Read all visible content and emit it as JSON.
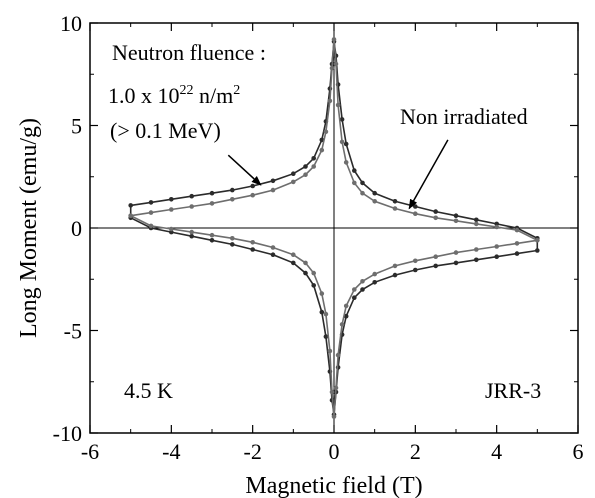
{
  "chart_data": {
    "type": "line",
    "title": "",
    "xlabel": "Magnetic field (T)",
    "ylabel": "Long Moment (emu/g)",
    "xlim": [
      -6,
      6
    ],
    "ylim": [
      -10,
      10
    ],
    "xticks": [
      -6,
      -4,
      -2,
      0,
      2,
      4,
      6
    ],
    "yticks": [
      -10,
      -5,
      0,
      5,
      10
    ],
    "xtick_labels": [
      "-6",
      "-4",
      "-2",
      "0",
      "2",
      "4",
      "6"
    ],
    "ytick_labels": [
      "-10",
      "-5",
      "0",
      "5",
      "10"
    ],
    "grid": false,
    "zero_lines": true,
    "colors": {
      "irradiated": "#2b2b2b",
      "non_irradiated": "#6e6e6e"
    },
    "series": [
      {
        "name": "",
        "label_ref": "irradiated",
        "color": "#2b2b2b",
        "upper": {
          "x": [
            -5.0,
            -4.5,
            -4.0,
            -3.5,
            -3.0,
            -2.5,
            -2.0,
            -1.5,
            -1.0,
            -0.7,
            -0.5,
            -0.3,
            -0.2,
            -0.1,
            -0.05,
            0.0,
            0.05,
            0.1,
            0.2,
            0.3,
            0.5,
            0.7,
            1.0,
            1.5,
            2.0,
            2.5,
            3.0,
            3.5,
            4.0,
            4.5,
            5.0
          ],
          "y": [
            1.1,
            1.25,
            1.4,
            1.55,
            1.7,
            1.85,
            2.05,
            2.3,
            2.65,
            3.0,
            3.4,
            4.3,
            5.2,
            6.8,
            8.0,
            9.1,
            8.4,
            7.0,
            5.3,
            4.1,
            2.8,
            2.2,
            1.7,
            1.3,
            1.05,
            0.8,
            0.6,
            0.4,
            0.2,
            0.0,
            -0.5
          ]
        },
        "lower": {
          "x": [
            -5.0,
            -4.5,
            -4.0,
            -3.5,
            -3.0,
            -2.5,
            -2.0,
            -1.5,
            -1.0,
            -0.7,
            -0.5,
            -0.3,
            -0.2,
            -0.1,
            -0.05,
            0.0,
            0.05,
            0.1,
            0.2,
            0.3,
            0.5,
            0.7,
            1.0,
            1.5,
            2.0,
            2.5,
            3.0,
            3.5,
            4.0,
            4.5,
            5.0
          ],
          "y": [
            0.5,
            0.0,
            -0.2,
            -0.4,
            -0.6,
            -0.8,
            -1.05,
            -1.3,
            -1.7,
            -2.2,
            -2.8,
            -4.1,
            -5.3,
            -7.0,
            -8.4,
            -9.1,
            -8.0,
            -6.8,
            -5.2,
            -4.3,
            -3.4,
            -3.0,
            -2.65,
            -2.3,
            -2.05,
            -1.85,
            -1.7,
            -1.55,
            -1.4,
            -1.25,
            -1.1
          ]
        }
      },
      {
        "name": "",
        "label_ref": "non_irradiated",
        "color": "#6e6e6e",
        "upper": {
          "x": [
            -5.0,
            -4.5,
            -4.0,
            -3.5,
            -3.0,
            -2.5,
            -2.0,
            -1.5,
            -1.0,
            -0.7,
            -0.5,
            -0.3,
            -0.2,
            -0.1,
            -0.05,
            0.0,
            0.05,
            0.1,
            0.2,
            0.3,
            0.5,
            0.7,
            1.0,
            1.5,
            2.0,
            2.5,
            3.0,
            3.5,
            4.0,
            4.5,
            5.0
          ],
          "y": [
            0.6,
            0.75,
            0.9,
            1.05,
            1.2,
            1.4,
            1.6,
            1.85,
            2.25,
            2.6,
            3.0,
            3.8,
            4.7,
            6.2,
            7.8,
            9.2,
            8.0,
            6.0,
            4.2,
            3.2,
            2.2,
            1.7,
            1.3,
            0.95,
            0.7,
            0.5,
            0.35,
            0.2,
            0.05,
            -0.1,
            -0.6
          ]
        },
        "lower": {
          "x": [
            -5.0,
            -4.5,
            -4.0,
            -3.5,
            -3.0,
            -2.5,
            -2.0,
            -1.5,
            -1.0,
            -0.7,
            -0.5,
            -0.3,
            -0.2,
            -0.1,
            -0.05,
            0.0,
            0.05,
            0.1,
            0.2,
            0.3,
            0.5,
            0.7,
            1.0,
            1.5,
            2.0,
            2.5,
            3.0,
            3.5,
            4.0,
            4.5,
            5.0
          ],
          "y": [
            0.6,
            0.1,
            -0.05,
            -0.2,
            -0.35,
            -0.5,
            -0.7,
            -0.95,
            -1.3,
            -1.7,
            -2.2,
            -3.2,
            -4.2,
            -6.0,
            -8.0,
            -9.2,
            -7.8,
            -6.2,
            -4.7,
            -3.8,
            -3.0,
            -2.6,
            -2.25,
            -1.85,
            -1.6,
            -1.4,
            -1.2,
            -1.05,
            -0.9,
            -0.75,
            -0.6
          ]
        }
      }
    ],
    "annotations": {
      "fluence_heading": "Neutron fluence :",
      "fluence_base": "1.0 x 10",
      "fluence_exp": "22",
      "fluence_unit_base": " n/m",
      "fluence_unit_exp": "2",
      "energy": "(> 0.1 MeV)",
      "non_irradiated": "Non irradiated",
      "temperature": "4.5 K",
      "reactor": "JRR-3"
    },
    "arrows": [
      {
        "label_ref": "irradiated",
        "from": [
          -2.6,
          3.55
        ],
        "to": [
          -1.8,
          2.1
        ]
      },
      {
        "label_ref": "non_irradiated",
        "from": [
          2.8,
          4.3
        ],
        "to": [
          1.85,
          0.95
        ]
      }
    ]
  }
}
